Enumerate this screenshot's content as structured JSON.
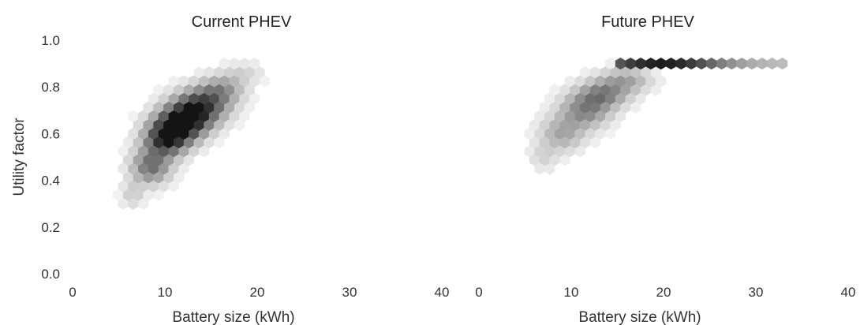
{
  "chart_data": [
    {
      "type": "heatmap",
      "title": "Current PHEV",
      "xlabel": "Battery size (kWh)",
      "ylabel": "Utility factor",
      "xlim": [
        0,
        40
      ],
      "ylim": [
        0.0,
        1.0
      ],
      "xticks": [
        "0",
        "10",
        "20",
        "30",
        "40"
      ],
      "yticks": [
        "0.0",
        "0.2",
        "0.4",
        "0.6",
        "0.8",
        "1.0"
      ],
      "grid": false,
      "density_clusters": [
        {
          "x": 6.5,
          "y": 0.34,
          "sx": 0.8,
          "sy": 0.04,
          "weight": 0.15
        },
        {
          "x": 8.5,
          "y": 0.46,
          "sx": 1.4,
          "sy": 0.05,
          "weight": 0.55
        },
        {
          "x": 10.2,
          "y": 0.58,
          "sx": 1.6,
          "sy": 0.05,
          "weight": 0.9
        },
        {
          "x": 12.0,
          "y": 0.65,
          "sx": 1.8,
          "sy": 0.05,
          "weight": 1.0
        },
        {
          "x": 14.0,
          "y": 0.72,
          "sx": 1.9,
          "sy": 0.05,
          "weight": 0.75
        },
        {
          "x": 16.2,
          "y": 0.79,
          "sx": 1.6,
          "sy": 0.04,
          "weight": 0.35
        },
        {
          "x": 18.5,
          "y": 0.86,
          "sx": 1.5,
          "sy": 0.03,
          "weight": 0.12
        }
      ]
    },
    {
      "type": "heatmap",
      "title": "Future PHEV",
      "xlabel": "Battery size (kWh)",
      "ylabel": "",
      "xlim": [
        0,
        40
      ],
      "ylim": [
        0.0,
        1.0
      ],
      "xticks": [
        "0",
        "10",
        "20",
        "30",
        "40"
      ],
      "yticks": [],
      "grid": false,
      "density_clusters": [
        {
          "x": 7.0,
          "y": 0.5,
          "sx": 1.0,
          "sy": 0.04,
          "weight": 0.12
        },
        {
          "x": 9.0,
          "y": 0.6,
          "sx": 1.6,
          "sy": 0.05,
          "weight": 0.3
        },
        {
          "x": 11.5,
          "y": 0.7,
          "sx": 1.8,
          "sy": 0.05,
          "weight": 0.45
        },
        {
          "x": 13.5,
          "y": 0.77,
          "sx": 1.8,
          "sy": 0.04,
          "weight": 0.45
        },
        {
          "x": 16.0,
          "y": 0.83,
          "sx": 1.8,
          "sy": 0.035,
          "weight": 0.3
        }
      ],
      "ceiling_band": {
        "y": 0.895,
        "x_start": 15,
        "x_end": 33,
        "peak_x": 20
      }
    }
  ]
}
